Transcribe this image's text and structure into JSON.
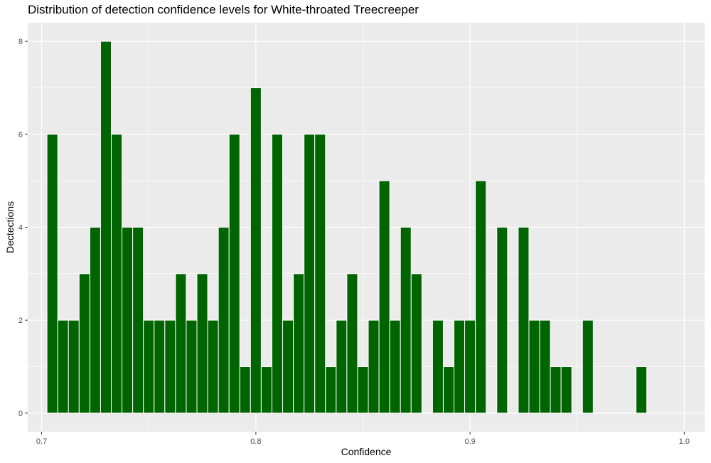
{
  "chart_data": {
    "type": "bar",
    "title": "Distribution of detection confidence levels for White-throated Treecreeper",
    "xlabel": "Confidence",
    "ylabel": "Dectections",
    "bin_width": 0.005,
    "x": [
      0.705,
      0.71,
      0.715,
      0.72,
      0.725,
      0.73,
      0.735,
      0.74,
      0.745,
      0.75,
      0.755,
      0.76,
      0.765,
      0.77,
      0.775,
      0.78,
      0.785,
      0.79,
      0.795,
      0.8,
      0.805,
      0.81,
      0.815,
      0.82,
      0.825,
      0.83,
      0.835,
      0.84,
      0.845,
      0.85,
      0.855,
      0.86,
      0.865,
      0.87,
      0.875,
      0.88,
      0.885,
      0.89,
      0.895,
      0.9,
      0.905,
      0.91,
      0.915,
      0.92,
      0.925,
      0.93,
      0.935,
      0.94,
      0.945,
      0.95,
      0.955,
      0.96,
      0.965,
      0.97,
      0.975,
      0.98
    ],
    "values": [
      6,
      2,
      2,
      3,
      4,
      8,
      6,
      4,
      4,
      2,
      2,
      2,
      3,
      2,
      3,
      2,
      4,
      6,
      1,
      7,
      1,
      6,
      2,
      3,
      6,
      6,
      1,
      2,
      3,
      1,
      2,
      5,
      2,
      4,
      3,
      0,
      2,
      1,
      2,
      2,
      5,
      0,
      4,
      0,
      4,
      2,
      2,
      1,
      1,
      0,
      2,
      0,
      0,
      0,
      0,
      1
    ],
    "xlim": [
      0.6935,
      1.0095
    ],
    "ylim": [
      -0.4,
      8.4
    ],
    "x_ticks": [
      0.7,
      0.8,
      0.9,
      1.0
    ],
    "x_tick_labels": [
      "0.7",
      "0.8",
      "0.9",
      "1.0"
    ],
    "x_minor_ticks": [
      0.75,
      0.85,
      0.95
    ],
    "y_ticks": [
      0,
      2,
      4,
      6,
      8
    ],
    "y_tick_labels": [
      "0",
      "2",
      "4",
      "6",
      "8"
    ],
    "y_minor_ticks": [
      1,
      3,
      5,
      7
    ],
    "grid": true,
    "legend": "none",
    "colors": {
      "bar_fill": "#006400",
      "bar_outline": "#ffffff",
      "panel_background": "#ebebeb",
      "grid": "#ffffff"
    }
  }
}
